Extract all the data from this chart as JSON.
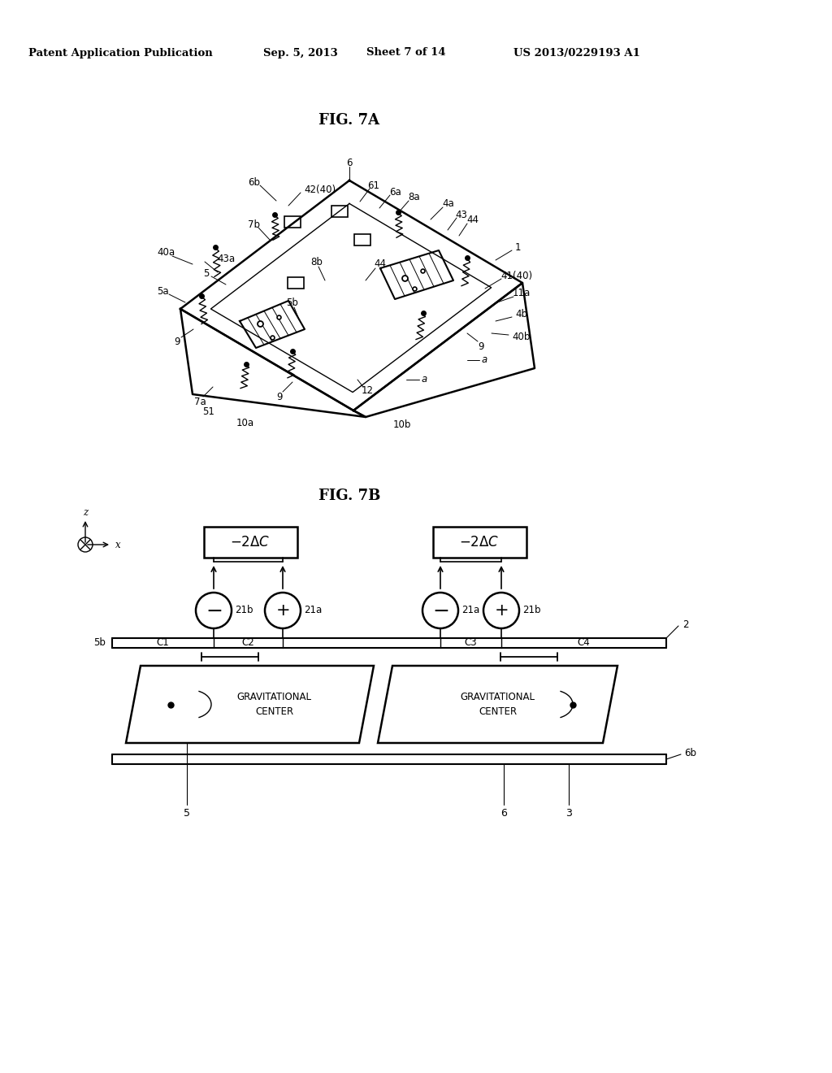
{
  "bg_color": "#ffffff",
  "header_text1": "Patent Application Publication",
  "header_text2": "Sep. 5, 2013",
  "header_text3": "Sheet 7 of 14",
  "header_text4": "US 2013/0229193 A1",
  "fig7a_title": "FIG. 7A",
  "fig7b_title": "FIG. 7B",
  "line_color": "#000000",
  "text_color": "#000000"
}
